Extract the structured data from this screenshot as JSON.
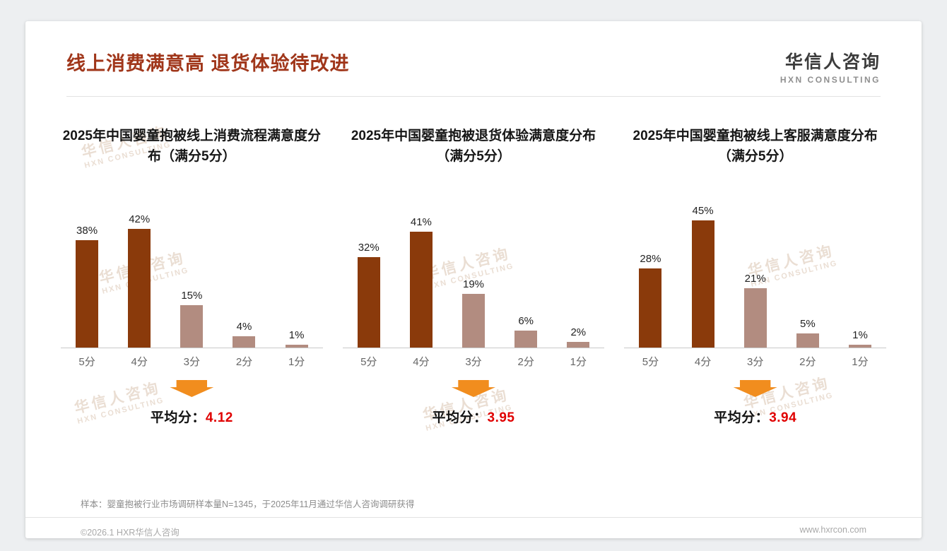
{
  "page": {
    "title": "线上消费满意高 退货体验待改进",
    "logo": {
      "name": "华信人咨询",
      "subtitle": "HXN CONSULTING"
    },
    "watermark": {
      "line1": "华信人咨询",
      "line2": "HXN CONSULTING"
    },
    "footnote": "样本：婴童抱被行业市场调研样本量N=1345，于2025年11月通过华信人咨询调研获得",
    "footer_left": "©2026.1 HXR华信人咨询",
    "footer_right": "www.hxrcon.com"
  },
  "colors": {
    "title": "#a0361a",
    "bar_dark": "#8a3a0b",
    "bar_light": "#b28c80",
    "arrow": "#f18d1e",
    "average_value": "#e00000"
  },
  "chart_data": [
    {
      "type": "bar",
      "title": "2025年中国婴童抱被线上消费流程满意度分布（满分5分）",
      "categories": [
        "5分",
        "4分",
        "3分",
        "2分",
        "1分"
      ],
      "values": [
        38,
        42,
        15,
        4,
        1
      ],
      "unit": "%",
      "ylim": [
        0,
        50
      ],
      "grid": false,
      "legend": false,
      "bar_colors": [
        "#8a3a0b",
        "#8a3a0b",
        "#b28c80",
        "#b28c80",
        "#b28c80"
      ],
      "avg_prefix": "平均分：",
      "average": "4.12"
    },
    {
      "type": "bar",
      "title": "2025年中国婴童抱被退货体验满意度分布（满分5分）",
      "categories": [
        "5分",
        "4分",
        "3分",
        "2分",
        "1分"
      ],
      "values": [
        32,
        41,
        19,
        6,
        2
      ],
      "unit": "%",
      "ylim": [
        0,
        50
      ],
      "grid": false,
      "legend": false,
      "bar_colors": [
        "#8a3a0b",
        "#8a3a0b",
        "#b28c80",
        "#b28c80",
        "#b28c80"
      ],
      "avg_prefix": "平均分：",
      "average": "3.95"
    },
    {
      "type": "bar",
      "title": "2025年中国婴童抱被线上客服满意度分布（满分5分）",
      "categories": [
        "5分",
        "4分",
        "3分",
        "2分",
        "1分"
      ],
      "values": [
        28,
        45,
        21,
        5,
        1
      ],
      "unit": "%",
      "ylim": [
        0,
        50
      ],
      "grid": false,
      "legend": false,
      "bar_colors": [
        "#8a3a0b",
        "#8a3a0b",
        "#b28c80",
        "#b28c80",
        "#b28c80"
      ],
      "avg_prefix": "平均分：",
      "average": "3.94"
    }
  ]
}
